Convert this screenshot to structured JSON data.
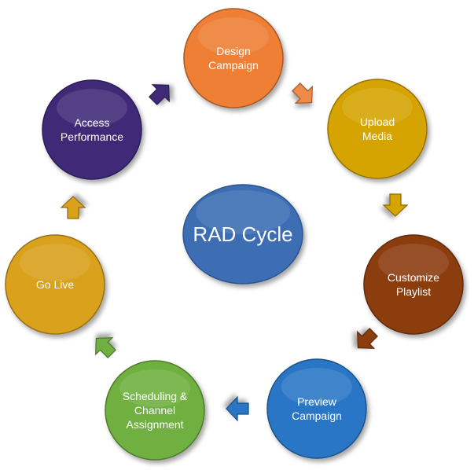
{
  "center": {
    "label": "RAD Cycle",
    "color": "#3c6db3"
  },
  "steps": [
    {
      "lines": [
        "Design",
        "Campaign"
      ],
      "color": "#ee7f35"
    },
    {
      "lines": [
        "Upload",
        "Media"
      ],
      "color": "#d6a400"
    },
    {
      "lines": [
        "Customize",
        "Playlist"
      ],
      "color": "#8b3d10"
    },
    {
      "lines": [
        "Preview",
        "Campaign"
      ],
      "color": "#2a76c6"
    },
    {
      "lines": [
        "Scheduling &",
        "Channel",
        "Assignment"
      ],
      "color": "#6fb03f"
    },
    {
      "lines": [
        "Go Live"
      ],
      "color": "#d9a11c"
    },
    {
      "lines": [
        "Access",
        "Performance"
      ],
      "color": "#3f2a78"
    }
  ],
  "arrows": [
    {
      "color": "#ef8a48",
      "icon": "arrow-right-down"
    },
    {
      "color": "#d6a400",
      "icon": "arrow-down"
    },
    {
      "color": "#8b3d10",
      "icon": "arrow-down-left"
    },
    {
      "color": "#2a76c6",
      "icon": "arrow-left"
    },
    {
      "color": "#6fb03f",
      "icon": "arrow-up-left"
    },
    {
      "color": "#d9a11c",
      "icon": "arrow-up"
    },
    {
      "color": "#3f2a78",
      "icon": "arrow-up-right"
    }
  ]
}
